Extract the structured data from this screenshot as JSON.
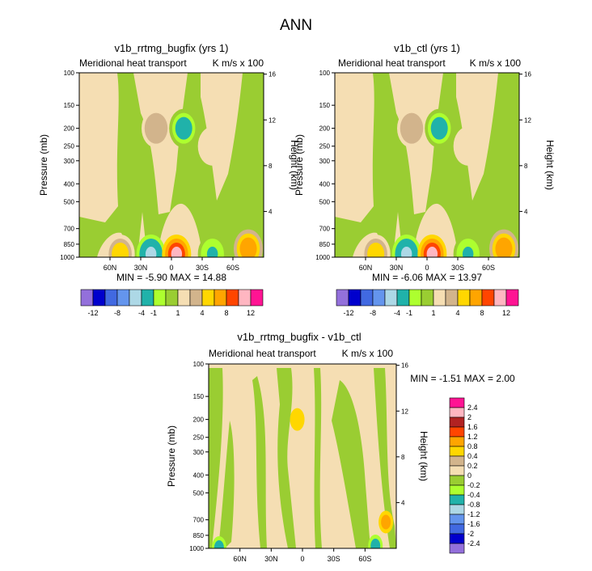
{
  "figure": {
    "title": "ANN"
  },
  "colors": {
    "ctl_palette": [
      "#9370DB",
      "#0000CD",
      "#4169E1",
      "#6495ED",
      "#ADD8E6",
      "#20B2AA",
      "#ADFF2F",
      "#9ACD32",
      "#F5DEB3",
      "#D2B48C",
      "#FFD700",
      "#FFA500",
      "#FF4500",
      "#FFB6C1",
      "#FF1493"
    ],
    "diff_palette": [
      "#9370DB",
      "#0000CD",
      "#4169E1",
      "#6495ED",
      "#ADD8E6",
      "#20B2AA",
      "#ADFF2F",
      "#9ACD32",
      "#F5DEB3",
      "#D2B48C",
      "#FFD700",
      "#FFA500",
      "#FF4500",
      "#B22222",
      "#FFB6C1",
      "#FF1493"
    ]
  },
  "chart_data": [
    {
      "type": "heatmap",
      "title": "v1b_rrtmg_bugfix (yrs 1)",
      "subtitle_left": "Meridional heat transport",
      "subtitle_right": "K m/s x 100",
      "ylabel": "Pressure (mb)",
      "ylabel_right": "Height (km)",
      "pressure_ticks": [
        "100",
        "150",
        "200",
        "250",
        "300",
        "400",
        "500",
        "700",
        "850",
        "1000"
      ],
      "height_ticks": [
        "16",
        "12",
        "8",
        "4"
      ],
      "lat_ticks": [
        "60N",
        "30N",
        "0",
        "30S",
        "60S"
      ],
      "stats": "MIN = -5.90  MAX = 14.88",
      "colorbar_labels": [
        "-12",
        "-8",
        "-4",
        "-1",
        "1",
        "4",
        "8",
        "12"
      ],
      "features": [
        {
          "lat": 15,
          "p": 200,
          "value": 2
        },
        {
          "lat": -12,
          "p": 200,
          "value": -3
        },
        {
          "lat": -40,
          "p": 250,
          "value": 0.5
        },
        {
          "lat": 50,
          "p": 960,
          "value": 3
        },
        {
          "lat": 20,
          "p": 960,
          "value": -4
        },
        {
          "lat": -5,
          "p": 960,
          "value": 9
        },
        {
          "lat": -40,
          "p": 960,
          "value": -2
        },
        {
          "lat": -75,
          "p": 900,
          "value": 6
        }
      ]
    },
    {
      "type": "heatmap",
      "title": "v1b_ctl (yrs 1)",
      "subtitle_left": "Meridional heat transport",
      "subtitle_right": "K m/s x 100",
      "ylabel": "Pressure (mb)",
      "ylabel_right": "Height (km)",
      "pressure_ticks": [
        "100",
        "150",
        "200",
        "250",
        "300",
        "400",
        "500",
        "700",
        "850",
        "1000"
      ],
      "height_ticks": [
        "16",
        "12",
        "8",
        "4"
      ],
      "lat_ticks": [
        "60N",
        "30N",
        "0",
        "30S",
        "60S"
      ],
      "stats": "MIN = -6.06  MAX = 13.97",
      "colorbar_labels": [
        "-12",
        "-8",
        "-4",
        "-1",
        "1",
        "4",
        "8",
        "12"
      ],
      "features": [
        {
          "lat": 15,
          "p": 200,
          "value": 2
        },
        {
          "lat": -12,
          "p": 200,
          "value": -3
        },
        {
          "lat": -40,
          "p": 250,
          "value": 0.5
        },
        {
          "lat": 50,
          "p": 960,
          "value": 3
        },
        {
          "lat": 20,
          "p": 960,
          "value": -4
        },
        {
          "lat": -5,
          "p": 960,
          "value": 9
        },
        {
          "lat": -40,
          "p": 960,
          "value": -2
        },
        {
          "lat": -75,
          "p": 900,
          "value": 6
        }
      ]
    },
    {
      "type": "heatmap",
      "title": "v1b_rrtmg_bugfix - v1b_ctl",
      "subtitle_left": "Meridional heat transport",
      "subtitle_right": "K m/s x 100",
      "ylabel": "Pressure (mb)",
      "ylabel_right": "Height (km)",
      "pressure_ticks": [
        "100",
        "150",
        "200",
        "250",
        "300",
        "400",
        "500",
        "700",
        "850",
        "1000"
      ],
      "height_ticks": [
        "16",
        "12",
        "8",
        "4"
      ],
      "lat_ticks": [
        "60N",
        "30N",
        "0",
        "30S",
        "60S"
      ],
      "stats": "MIN = -1.51  MAX =  2.00",
      "colorbar_labels": [
        "2.4",
        "2",
        "1.6",
        "1.2",
        "0.8",
        "0.4",
        "0.2",
        "0",
        "-0.2",
        "-0.4",
        "-0.8",
        "-1.2",
        "-1.6",
        "-2",
        "-2.4"
      ],
      "features": [
        {
          "lat": 5,
          "p": 200,
          "value": 0.8
        },
        {
          "lat": -80,
          "p": 720,
          "value": 1.2
        },
        {
          "lat": -70,
          "p": 970,
          "value": -0.6
        },
        {
          "lat": 80,
          "p": 990,
          "value": -0.4
        }
      ]
    }
  ]
}
